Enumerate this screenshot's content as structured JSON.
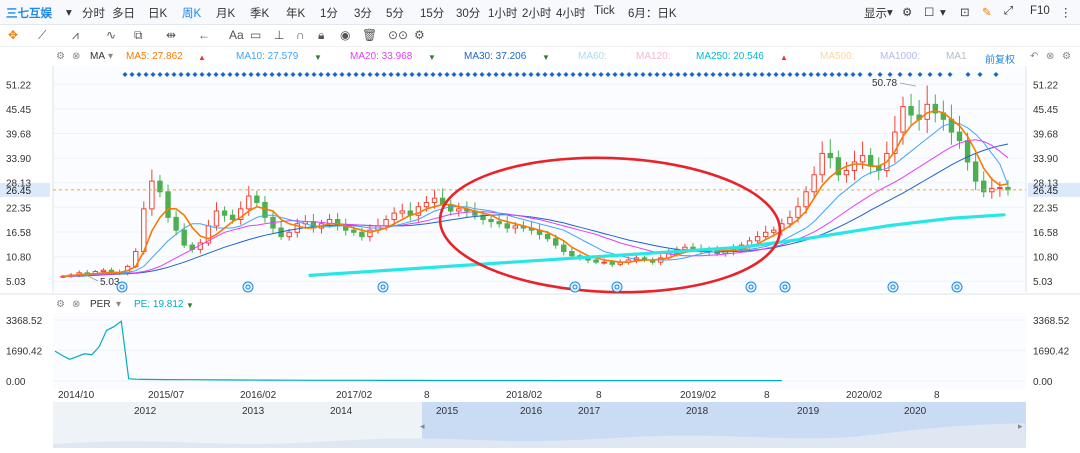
{
  "topbar": {
    "stock_name": "三七互娱",
    "periods": [
      "分时",
      "多日",
      "日K",
      "周K",
      "月K",
      "季K",
      "年K",
      "1分",
      "3分",
      "5分",
      "15分",
      "30分",
      "1小时",
      "2小时",
      "4小时",
      "Tick",
      "6月：日K"
    ],
    "active_period": "周K",
    "display_label": "显示",
    "f10_label": "F10"
  },
  "toolbar": {
    "text_tool": "Aa"
  },
  "indicators": {
    "ma_label": "MA",
    "mas": [
      {
        "label": "MA5: 27.862",
        "color": "#f57c00",
        "arrow": "▲",
        "arrow_color": "#e53935"
      },
      {
        "label": "MA10: 27.579",
        "color": "#42a5f5",
        "arrow": "▼",
        "arrow_color": "#2e7d32"
      },
      {
        "label": "MA20: 33.968",
        "color": "#e040fb",
        "arrow": "▼",
        "arrow_color": "#2e7d32"
      },
      {
        "label": "MA30: 37.206",
        "color": "#1e63c8",
        "arrow": "▼",
        "arrow_color": "#2e7d32"
      },
      {
        "label": "MA60:",
        "color": "#a9dcec",
        "arrow": "",
        "arrow_color": ""
      },
      {
        "label": "MA120:",
        "color": "#f3b9c9",
        "arrow": "",
        "arrow_color": ""
      },
      {
        "label": "MA250: 20.546",
        "color": "#00bcd4",
        "arrow": "▲",
        "arrow_color": "#e53935"
      },
      {
        "label": "MA500:",
        "color": "#f6d9a5",
        "arrow": "",
        "arrow_color": ""
      },
      {
        "label": "MA1000:",
        "color": "#b2b8f0",
        "arrow": "",
        "arrow_color": ""
      },
      {
        "label": "MA1",
        "color": "#b0bec5",
        "arrow": "",
        "arrow_color": ""
      }
    ],
    "fuquan_label": "前复权",
    "per_label": "PER",
    "pe_label": "PE: 19.812",
    "pe_color": "#00acc1"
  },
  "chart_data": {
    "type": "candlestick",
    "price_axis": {
      "ticks": [
        "51.22",
        "45.45",
        "39.68",
        "33.90",
        "28.13",
        "22.35",
        "16.58",
        "10.80",
        "5.03"
      ],
      "ylim": [
        2.5,
        55.5
      ]
    },
    "current_price": "26.45",
    "high_label": "50.78",
    "low_label": "5.03",
    "x_ticks": [
      "2014/10",
      "2015/07",
      "2016/02",
      "2017/02",
      "8",
      "2018/02",
      "8",
      "2019/02",
      "8",
      "2020/02",
      "8"
    ],
    "closes": [
      6.2,
      6.5,
      7.0,
      6.8,
      7.3,
      7.6,
      7.1,
      6.9,
      8.5,
      12.0,
      22.0,
      28.5,
      26.0,
      20.0,
      17.0,
      13.5,
      12.5,
      14.0,
      18.0,
      21.5,
      20.5,
      19.5,
      22.0,
      25.0,
      23.5,
      20.0,
      17.5,
      15.5,
      16.5,
      18.5,
      19.0,
      17.5,
      18.5,
      19.5,
      18.0,
      17.0,
      16.5,
      15.5,
      17.0,
      18.0,
      19.5,
      21.0,
      21.5,
      20.5,
      22.5,
      23.5,
      24.5,
      23.0,
      21.5,
      22.0,
      21.5,
      20.5,
      19.5,
      19.0,
      18.5,
      17.5,
      18.0,
      17.5,
      17.0,
      16.0,
      15.0,
      13.5,
      12.0,
      11.0,
      10.5,
      10.0,
      9.5,
      9.5,
      9.0,
      9.5,
      10.0,
      10.5,
      10.0,
      9.5,
      10.5,
      11.5,
      12.5,
      13.0,
      12.5,
      12.0,
      12.5,
      11.5,
      12.0,
      12.5,
      13.5,
      14.5,
      15.5,
      16.5,
      17.0,
      18.5,
      20.0,
      22.5,
      26.0,
      30.0,
      35.0,
      34.0,
      30.0,
      31.0,
      33.0,
      34.5,
      32.0,
      31.0,
      35.0,
      40.0,
      46.0,
      44.0,
      43.0,
      46.5,
      44.5,
      43.0,
      40.0,
      38.0,
      33.0,
      28.5,
      26.0,
      26.8,
      27.0,
      26.45
    ],
    "ma5": [
      6.2,
      6.3,
      6.6,
      6.7,
      6.8,
      7.0,
      7.1,
      7.1,
      7.5,
      8.5,
      12.0,
      16.8,
      20.0,
      22.0,
      22.0,
      20.5,
      17.6,
      15.6,
      15.0,
      16.0,
      17.5,
      19.0,
      20.0,
      21.5,
      22.5,
      22.0,
      21.5,
      19.5,
      18.5,
      18.0,
      17.5,
      17.5,
      18.0,
      18.5,
      18.5,
      18.0,
      17.5,
      17.0,
      16.5,
      17.0,
      17.5,
      18.5,
      19.5,
      20.5,
      21.0,
      22.0,
      22.5,
      23.0,
      23.0,
      22.5,
      22.0,
      21.5,
      21.0,
      20.5,
      19.5,
      19.0,
      18.5,
      18.0,
      17.5,
      17.0,
      16.5,
      15.5,
      14.5,
      13.0,
      12.0,
      11.0,
      10.5,
      10.0,
      9.8,
      9.5,
      9.5,
      9.8,
      10.0,
      10.0,
      10.2,
      10.5,
      11.2,
      11.8,
      12.2,
      12.4,
      12.5,
      12.4,
      12.2,
      12.2,
      12.5,
      13.0,
      13.8,
      14.8,
      15.8,
      16.8,
      18.0,
      19.5,
      21.5,
      24.5,
      27.5,
      29.5,
      31.0,
      32.0,
      32.5,
      32.5,
      32.0,
      32.0,
      33.0,
      35.5,
      39.0,
      41.5,
      43.0,
      44.5,
      45.0,
      44.5,
      43.0,
      41.5,
      39.0,
      35.5,
      31.5,
      29.0,
      27.5,
      27.86
    ],
    "ma10": [
      6.2,
      6.3,
      6.5,
      6.6,
      6.7,
      6.8,
      6.9,
      7.0,
      7.1,
      7.5,
      8.5,
      10.5,
      12.5,
      14.5,
      16.0,
      17.5,
      18.5,
      18.5,
      18.0,
      17.5,
      17.5,
      17.5,
      18.0,
      19.0,
      20.0,
      20.5,
      20.5,
      20.0,
      19.5,
      19.0,
      18.5,
      18.0,
      17.8,
      17.8,
      18.0,
      18.0,
      18.0,
      17.8,
      17.5,
      17.5,
      17.5,
      18.0,
      18.5,
      19.0,
      19.5,
      20.5,
      21.5,
      22.0,
      22.5,
      22.5,
      22.5,
      22.0,
      21.8,
      21.5,
      21.0,
      20.5,
      20.0,
      19.5,
      19.0,
      18.5,
      18.0,
      17.5,
      17.0,
      16.0,
      15.0,
      14.0,
      13.0,
      12.0,
      11.5,
      11.0,
      10.5,
      10.2,
      10.0,
      10.0,
      10.0,
      10.0,
      10.2,
      10.5,
      11.0,
      11.5,
      11.8,
      12.0,
      12.2,
      12.3,
      12.4,
      12.5,
      12.8,
      13.2,
      13.8,
      14.5,
      15.5,
      16.5,
      17.5,
      19.0,
      21.0,
      23.0,
      25.0,
      26.5,
      28.0,
      29.5,
      30.5,
      31.0,
      31.5,
      32.5,
      34.0,
      35.5,
      37.0,
      38.5,
      40.0,
      41.5,
      42.0,
      42.0,
      41.0,
      39.5,
      37.5,
      35.0,
      32.5,
      27.58
    ],
    "ma20": [
      6.2,
      6.2,
      6.3,
      6.4,
      6.5,
      6.6,
      6.7,
      6.8,
      6.9,
      7.0,
      7.3,
      7.8,
      8.5,
      9.5,
      10.5,
      11.5,
      12.5,
      13.5,
      14.5,
      15.5,
      16.5,
      17.0,
      17.5,
      18.0,
      18.2,
      18.5,
      18.8,
      19.0,
      19.2,
      19.2,
      19.0,
      19.0,
      18.8,
      18.6,
      18.5,
      18.4,
      18.3,
      18.2,
      18.0,
      18.0,
      18.0,
      18.0,
      18.2,
      18.5,
      18.8,
      19.2,
      19.7,
      20.2,
      20.7,
      21.0,
      21.2,
      21.3,
      21.3,
      21.2,
      21.0,
      20.8,
      20.5,
      20.2,
      19.8,
      19.5,
      19.0,
      18.5,
      18.0,
      17.5,
      17.0,
      16.5,
      16.0,
      15.3,
      14.7,
      14.0,
      13.5,
      13.0,
      12.5,
      12.0,
      11.7,
      11.4,
      11.2,
      11.0,
      11.0,
      11.0,
      11.1,
      11.2,
      11.4,
      11.6,
      11.8,
      12.0,
      12.3,
      12.7,
      13.1,
      13.6,
      14.2,
      14.9,
      15.7,
      16.6,
      17.7,
      18.9,
      20.2,
      21.5,
      22.8,
      24.0,
      25.2,
      26.3,
      27.3,
      28.3,
      29.4,
      30.6,
      31.8,
      33.0,
      34.2,
      35.4,
      36.5,
      37.4,
      38.0,
      38.2,
      37.8,
      36.9,
      35.5,
      33.97
    ],
    "ma30": [
      6.2,
      6.2,
      6.2,
      6.3,
      6.4,
      6.5,
      6.6,
      6.7,
      6.8,
      6.9,
      7.1,
      7.4,
      7.8,
      8.3,
      8.9,
      9.5,
      10.2,
      10.9,
      11.6,
      12.3,
      13.0,
      13.6,
      14.2,
      14.8,
      15.3,
      15.8,
      16.2,
      16.6,
      17.0,
      17.3,
      17.6,
      17.8,
      18.0,
      18.1,
      18.2,
      18.2,
      18.2,
      18.2,
      18.1,
      18.0,
      18.0,
      18.0,
      18.0,
      18.1,
      18.3,
      18.5,
      18.8,
      19.1,
      19.4,
      19.7,
      20.0,
      20.2,
      20.4,
      20.5,
      20.6,
      20.6,
      20.5,
      20.3,
      20.1,
      19.8,
      19.5,
      19.1,
      18.7,
      18.2,
      17.7,
      17.2,
      16.7,
      16.2,
      15.7,
      15.2,
      14.7,
      14.3,
      13.9,
      13.5,
      13.1,
      12.8,
      12.5,
      12.3,
      12.1,
      12.0,
      11.9,
      11.9,
      11.9,
      12.0,
      12.1,
      12.2,
      12.4,
      12.6,
      12.9,
      13.3,
      13.7,
      14.2,
      14.7,
      15.3,
      16.0,
      16.8,
      17.7,
      18.6,
      19.6,
      20.6,
      21.7,
      22.7,
      23.7,
      24.7,
      25.7,
      26.8,
      27.9,
      29.0,
      30.1,
      31.2,
      32.3,
      33.3,
      34.2,
      35.0,
      35.7,
      36.3,
      36.8,
      37.21
    ],
    "ma250": [
      null,
      null,
      null,
      null,
      null,
      null,
      null,
      null,
      null,
      null,
      null,
      null,
      null,
      null,
      null,
      null,
      null,
      null,
      null,
      null,
      null,
      null,
      null,
      null,
      null,
      null,
      null,
      null,
      null,
      null,
      null,
      null,
      null,
      null,
      null,
      null,
      null,
      null,
      null,
      null,
      null,
      null,
      null,
      null,
      null,
      null,
      null,
      null,
      null,
      null,
      null,
      null,
      null,
      null,
      null,
      null,
      null,
      null,
      null,
      null,
      null,
      null,
      null,
      null,
      null,
      null,
      null,
      null,
      null,
      null,
      null,
      null,
      null,
      null,
      null,
      null,
      null,
      null,
      null,
      null,
      null,
      null,
      null,
      null,
      null,
      null,
      null,
      13.4,
      13.8,
      14.2,
      14.6,
      15.0,
      15.4,
      15.8,
      16.2,
      16.6,
      17.0,
      17.4,
      17.8,
      18.2,
      18.5,
      18.8,
      19.1,
      19.3,
      19.5,
      19.7,
      19.9,
      20.1,
      20.2,
      20.3,
      20.4,
      20.45,
      20.5,
      20.51,
      20.52,
      20.53,
      20.54,
      20.546
    ],
    "ma250_faint": [
      null,
      null,
      null,
      null,
      null,
      null,
      null,
      null,
      null,
      null,
      null,
      null,
      null,
      null,
      null,
      null,
      null,
      null,
      null,
      null,
      null,
      null,
      null,
      null,
      null,
      null,
      null,
      null,
      null,
      null,
      null,
      null,
      null,
      null,
      null,
      null,
      null,
      null,
      null,
      null,
      null,
      null,
      null,
      null,
      null,
      null,
      null,
      null,
      null,
      null,
      null,
      null,
      null,
      null,
      null,
      null,
      null,
      null,
      null,
      null,
      null,
      null,
      null,
      null,
      null,
      null,
      null,
      null,
      null,
      null,
      null,
      null,
      null,
      null,
      null,
      null,
      null,
      null,
      null,
      null,
      null,
      null,
      null,
      null,
      null,
      null,
      null,
      null,
      null,
      null,
      null,
      null,
      null,
      null,
      null,
      null,
      null,
      null,
      null,
      null,
      null,
      null,
      null,
      null,
      null,
      null,
      null,
      null,
      null,
      null,
      null,
      null,
      null,
      null,
      null,
      null,
      null
    ],
    "cyan_trend": {
      "start_y": 6.4,
      "end_y": 20.6
    },
    "pe_axis": {
      "ticks": [
        "3368.52",
        "1690.42",
        "0.00"
      ],
      "ylim": [
        0,
        3368.52
      ]
    },
    "pe_values": [
      1650,
      1400,
      1200,
      1350,
      1500,
      1450,
      1900,
      2800,
      3000,
      3300,
      120,
      100,
      90,
      80,
      70,
      60,
      55,
      50,
      45,
      40,
      38,
      36,
      34,
      32,
      30,
      28,
      27,
      26,
      25,
      24,
      23,
      22,
      21,
      20,
      20,
      20,
      20,
      20,
      19.8
    ],
    "mini_axis": [
      "2012",
      "2013",
      "2014",
      "2015",
      "2016",
      "2017",
      "2018",
      "2019",
      "2020"
    ]
  }
}
